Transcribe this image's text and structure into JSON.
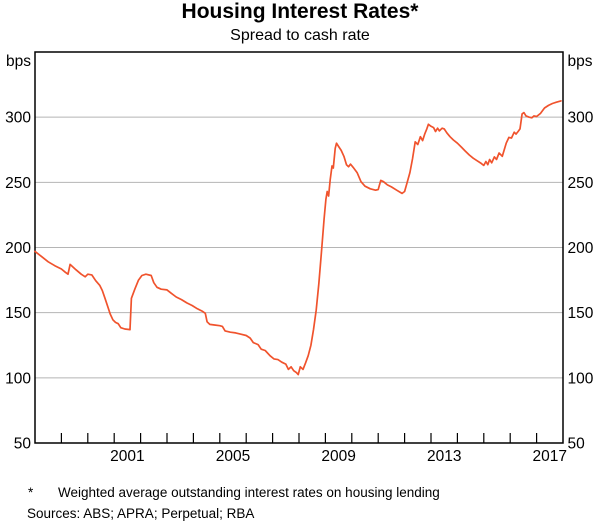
{
  "page": {
    "title": "Housing Interest Rates*",
    "subtitle": "Spread to cash rate",
    "footnote_marker": "*",
    "footnote_text": "Weighted average outstanding interest rates on housing lending",
    "sources": "Sources: ABS; APRA; Perpetual; RBA"
  },
  "chart_data": {
    "type": "line",
    "title": "Housing Interest Rates*",
    "subtitle": "Spread to cash rate",
    "unit_label": "bps",
    "xlim": [
      1998,
      2018
    ],
    "ylim": [
      50,
      350
    ],
    "y_ticks": [
      50,
      100,
      150,
      200,
      250,
      300
    ],
    "x_tick_years_labeled": [
      2001,
      2005,
      2009,
      2013,
      2017
    ],
    "grid": "horizontal-gridlines-on",
    "legend": "none",
    "line_color": "#F0532D",
    "grid_color": "#b5b5b5",
    "axis_color": "#000000",
    "series": [
      {
        "name": "Spread to cash rate",
        "points": [
          [
            1998.0,
            197
          ],
          [
            1998.25,
            193
          ],
          [
            1998.5,
            189
          ],
          [
            1998.75,
            186
          ],
          [
            1999.0,
            183.5
          ],
          [
            1999.15,
            181
          ],
          [
            1999.25,
            179.5
          ],
          [
            1999.33,
            187
          ],
          [
            1999.55,
            183
          ],
          [
            1999.75,
            179.5
          ],
          [
            1999.9,
            177.5
          ],
          [
            2000.0,
            179.5
          ],
          [
            2000.15,
            179
          ],
          [
            2000.3,
            174.5
          ],
          [
            2000.45,
            171
          ],
          [
            2000.55,
            167
          ],
          [
            2000.65,
            161
          ],
          [
            2000.75,
            155
          ],
          [
            2000.85,
            149
          ],
          [
            2000.95,
            144.5
          ],
          [
            2001.05,
            142.5
          ],
          [
            2001.15,
            141.5
          ],
          [
            2001.25,
            138.5
          ],
          [
            2001.4,
            137.5
          ],
          [
            2001.6,
            137
          ],
          [
            2001.65,
            161
          ],
          [
            2001.78,
            168
          ],
          [
            2001.92,
            175
          ],
          [
            2002.05,
            178.5
          ],
          [
            2002.2,
            179.5
          ],
          [
            2002.4,
            178.5
          ],
          [
            2002.5,
            173
          ],
          [
            2002.62,
            169.5
          ],
          [
            2002.78,
            168
          ],
          [
            2003.0,
            167.5
          ],
          [
            2003.15,
            165
          ],
          [
            2003.35,
            162
          ],
          [
            2003.55,
            160
          ],
          [
            2003.75,
            157.5
          ],
          [
            2003.95,
            155.5
          ],
          [
            2004.15,
            153
          ],
          [
            2004.35,
            151
          ],
          [
            2004.45,
            149.5
          ],
          [
            2004.52,
            143
          ],
          [
            2004.62,
            141
          ],
          [
            2004.8,
            140.5
          ],
          [
            2005.0,
            140
          ],
          [
            2005.1,
            139.5
          ],
          [
            2005.2,
            136
          ],
          [
            2005.4,
            135
          ],
          [
            2005.6,
            134.5
          ],
          [
            2005.8,
            133.5
          ],
          [
            2006.0,
            132.5
          ],
          [
            2006.15,
            130.5
          ],
          [
            2006.27,
            127
          ],
          [
            2006.45,
            125.5
          ],
          [
            2006.57,
            122
          ],
          [
            2006.72,
            121
          ],
          [
            2006.9,
            117
          ],
          [
            2007.05,
            114.5
          ],
          [
            2007.2,
            114
          ],
          [
            2007.35,
            112
          ],
          [
            2007.5,
            110.5
          ],
          [
            2007.6,
            106.5
          ],
          [
            2007.7,
            108.5
          ],
          [
            2007.8,
            105.5
          ],
          [
            2007.9,
            104
          ],
          [
            2007.97,
            102.5
          ],
          [
            2008.05,
            108.5
          ],
          [
            2008.15,
            106.5
          ],
          [
            2008.25,
            111.5
          ],
          [
            2008.35,
            117
          ],
          [
            2008.45,
            125
          ],
          [
            2008.55,
            137
          ],
          [
            2008.65,
            152
          ],
          [
            2008.75,
            172
          ],
          [
            2008.85,
            196
          ],
          [
            2008.95,
            222
          ],
          [
            2009.02,
            237
          ],
          [
            2009.07,
            243
          ],
          [
            2009.12,
            239.5
          ],
          [
            2009.18,
            252
          ],
          [
            2009.25,
            262.5
          ],
          [
            2009.3,
            261
          ],
          [
            2009.37,
            276
          ],
          [
            2009.42,
            280
          ],
          [
            2009.5,
            277.5
          ],
          [
            2009.6,
            274.5
          ],
          [
            2009.7,
            270
          ],
          [
            2009.8,
            263.5
          ],
          [
            2009.88,
            262
          ],
          [
            2009.95,
            264
          ],
          [
            2010.05,
            261.5
          ],
          [
            2010.2,
            257.5
          ],
          [
            2010.35,
            250.5
          ],
          [
            2010.5,
            247
          ],
          [
            2010.7,
            245
          ],
          [
            2010.9,
            244
          ],
          [
            2011.0,
            244.5
          ],
          [
            2011.1,
            251.5
          ],
          [
            2011.2,
            250.5
          ],
          [
            2011.35,
            248
          ],
          [
            2011.5,
            246.5
          ],
          [
            2011.7,
            244
          ],
          [
            2011.9,
            241.5
          ],
          [
            2012.0,
            243
          ],
          [
            2012.1,
            250
          ],
          [
            2012.2,
            257.5
          ],
          [
            2012.3,
            268
          ],
          [
            2012.4,
            281
          ],
          [
            2012.5,
            279
          ],
          [
            2012.6,
            285
          ],
          [
            2012.68,
            282
          ],
          [
            2012.76,
            287
          ],
          [
            2012.84,
            291
          ],
          [
            2012.9,
            294.5
          ],
          [
            2013.0,
            293
          ],
          [
            2013.1,
            292
          ],
          [
            2013.17,
            289
          ],
          [
            2013.25,
            291.5
          ],
          [
            2013.32,
            289.5
          ],
          [
            2013.42,
            291.5
          ],
          [
            2013.5,
            291
          ],
          [
            2013.6,
            288
          ],
          [
            2013.72,
            285
          ],
          [
            2013.85,
            282.5
          ],
          [
            2014.0,
            280
          ],
          [
            2014.15,
            277
          ],
          [
            2014.3,
            274
          ],
          [
            2014.45,
            271
          ],
          [
            2014.6,
            268.5
          ],
          [
            2014.75,
            266.5
          ],
          [
            2014.9,
            264.5
          ],
          [
            2015.0,
            263
          ],
          [
            2015.08,
            266
          ],
          [
            2015.15,
            263.5
          ],
          [
            2015.22,
            267.5
          ],
          [
            2015.3,
            265
          ],
          [
            2015.4,
            269.5
          ],
          [
            2015.48,
            267.5
          ],
          [
            2015.58,
            272.5
          ],
          [
            2015.7,
            270
          ],
          [
            2015.85,
            280
          ],
          [
            2015.95,
            284.5
          ],
          [
            2016.05,
            284
          ],
          [
            2016.15,
            288.5
          ],
          [
            2016.22,
            287
          ],
          [
            2016.3,
            289
          ],
          [
            2016.37,
            291
          ],
          [
            2016.45,
            302.5
          ],
          [
            2016.52,
            303.5
          ],
          [
            2016.6,
            301
          ],
          [
            2016.72,
            300
          ],
          [
            2016.82,
            299.5
          ],
          [
            2016.9,
            301
          ],
          [
            2017.0,
            300.5
          ],
          [
            2017.15,
            303
          ],
          [
            2017.3,
            307
          ],
          [
            2017.45,
            309
          ],
          [
            2017.6,
            310.5
          ],
          [
            2017.75,
            311.5
          ],
          [
            2017.92,
            312.5
          ]
        ]
      }
    ]
  }
}
